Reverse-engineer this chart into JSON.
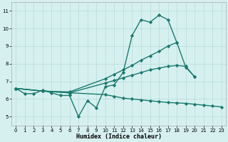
{
  "xlabel": "Humidex (Indice chaleur)",
  "xlim": [
    -0.5,
    23.5
  ],
  "ylim": [
    4.5,
    11.5
  ],
  "yticks": [
    5,
    6,
    7,
    8,
    9,
    10,
    11
  ],
  "xticks": [
    0,
    1,
    2,
    3,
    4,
    5,
    6,
    7,
    8,
    9,
    10,
    11,
    12,
    13,
    14,
    15,
    16,
    17,
    18,
    19,
    20,
    21,
    22,
    23
  ],
  "bg_color": "#d6f0f0",
  "line_color": "#1a7a6e",
  "grid_color": "#bbdddd",
  "lines": [
    {
      "x": [
        0,
        1,
        2,
        3,
        4,
        5,
        6,
        7,
        8,
        9,
        10,
        11,
        12,
        13,
        14,
        15,
        16,
        17,
        18
      ],
      "y": [
        6.6,
        6.3,
        6.3,
        6.5,
        6.35,
        6.2,
        6.2,
        5.0,
        5.9,
        5.5,
        6.7,
        6.8,
        7.5,
        9.6,
        10.5,
        10.35,
        10.75,
        10.5,
        9.2
      ],
      "marker": "D",
      "markersize": 2.2,
      "linewidth": 1.0
    },
    {
      "x": [
        0,
        3,
        6,
        10,
        11,
        12,
        13,
        14,
        15,
        16,
        17,
        18,
        19,
        20
      ],
      "y": [
        6.6,
        6.45,
        6.4,
        7.15,
        7.4,
        7.65,
        7.9,
        8.2,
        8.45,
        8.7,
        9.0,
        9.2,
        7.8,
        7.25
      ],
      "marker": "D",
      "markersize": 2.2,
      "linewidth": 1.0
    },
    {
      "x": [
        0,
        3,
        6,
        10,
        11,
        12,
        13,
        14,
        15,
        16,
        17,
        18,
        19,
        20
      ],
      "y": [
        6.6,
        6.45,
        6.35,
        6.9,
        7.05,
        7.2,
        7.35,
        7.5,
        7.65,
        7.75,
        7.85,
        7.9,
        7.85,
        7.25
      ],
      "marker": "D",
      "markersize": 2.2,
      "linewidth": 1.0
    },
    {
      "x": [
        0,
        3,
        6,
        10,
        11,
        12,
        13,
        14,
        15,
        16,
        17,
        18,
        19,
        20,
        21,
        22,
        23
      ],
      "y": [
        6.6,
        6.45,
        6.35,
        6.25,
        6.15,
        6.05,
        6.0,
        5.95,
        5.9,
        5.85,
        5.8,
        5.78,
        5.75,
        5.7,
        5.65,
        5.6,
        5.55
      ],
      "marker": "D",
      "markersize": 2.2,
      "linewidth": 1.0
    }
  ]
}
